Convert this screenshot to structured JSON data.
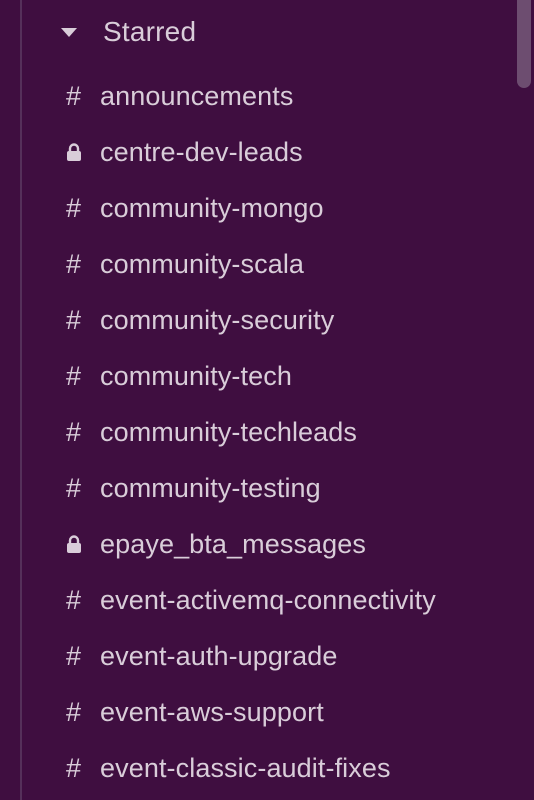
{
  "colors": {
    "background": "#3f0e40",
    "text": "#d9cdd9",
    "scrollbar": "#6d4d70"
  },
  "section": {
    "label": "Starred",
    "icon": "caret-down-icon"
  },
  "channels": [
    {
      "name": "announcements",
      "type": "public",
      "icon": "hash-icon",
      "prefix": "#"
    },
    {
      "name": "centre-dev-leads",
      "type": "private",
      "icon": "lock-icon",
      "prefix": ""
    },
    {
      "name": "community-mongo",
      "type": "public",
      "icon": "hash-icon",
      "prefix": "#"
    },
    {
      "name": "community-scala",
      "type": "public",
      "icon": "hash-icon",
      "prefix": "#"
    },
    {
      "name": "community-security",
      "type": "public",
      "icon": "hash-icon",
      "prefix": "#"
    },
    {
      "name": "community-tech",
      "type": "public",
      "icon": "hash-icon",
      "prefix": "#"
    },
    {
      "name": "community-techleads",
      "type": "public",
      "icon": "hash-icon",
      "prefix": "#"
    },
    {
      "name": "community-testing",
      "type": "public",
      "icon": "hash-icon",
      "prefix": "#"
    },
    {
      "name": "epaye_bta_messages",
      "type": "private",
      "icon": "lock-icon",
      "prefix": ""
    },
    {
      "name": "event-activemq-connectivity",
      "type": "public",
      "icon": "hash-icon",
      "prefix": "#"
    },
    {
      "name": "event-auth-upgrade",
      "type": "public",
      "icon": "hash-icon",
      "prefix": "#"
    },
    {
      "name": "event-aws-support",
      "type": "public",
      "icon": "hash-icon",
      "prefix": "#"
    },
    {
      "name": "event-classic-audit-fixes",
      "type": "public",
      "icon": "hash-icon",
      "prefix": "#"
    }
  ]
}
